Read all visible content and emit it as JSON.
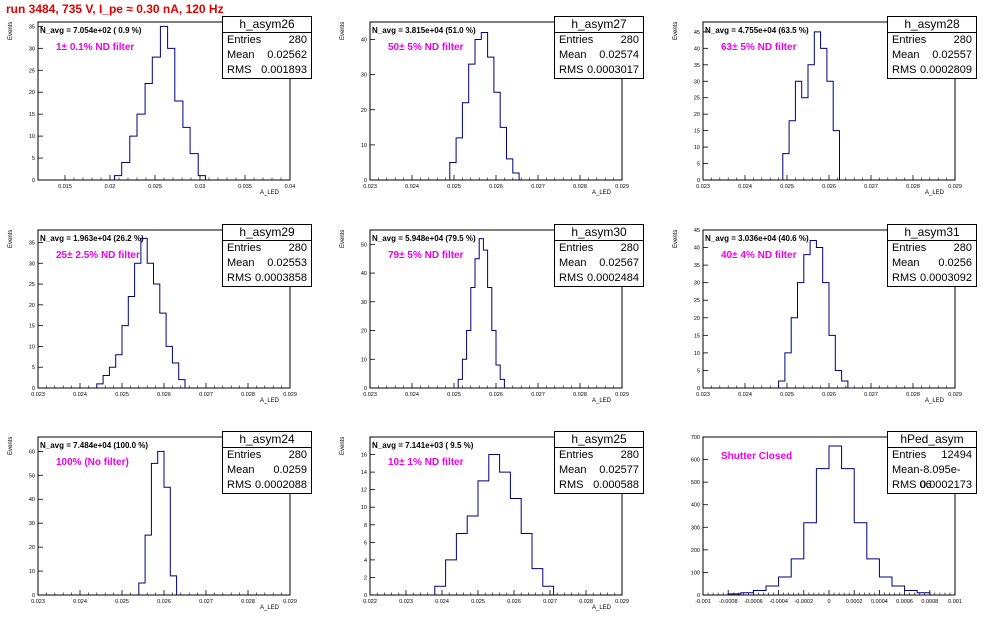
{
  "header": {
    "title": "run 3484,   735 V, I_pe ≈ 0.30 nA, 120 Hz"
  },
  "colors": {
    "title": "#e00000",
    "filter_label": "#ee00ee",
    "histogram": "#000080"
  },
  "chart_data": [
    {
      "type": "histogram",
      "name": "h_asym26",
      "stats": {
        "title": "h_asym26",
        "entries": "280",
        "mean": "0.02562",
        "rms": "0.001893"
      },
      "n_avg": "N_avg = 7.054e+02 ( 0.9 %)",
      "filter": "1± 0.1% ND filter",
      "xlabel": "A_LED",
      "ylabel": "Events",
      "xlim": [
        0.012,
        0.04
      ],
      "ylim": [
        0,
        36
      ],
      "xticks": [
        0.015,
        0.02,
        0.025,
        0.03,
        0.035,
        0.04
      ],
      "xtick_labels": [
        "0.015",
        "0.02",
        "0.025",
        "0.03",
        "0.035",
        "0.04"
      ],
      "yticks": [
        0,
        5,
        10,
        15,
        20,
        25,
        30,
        35
      ],
      "bin_edges": [
        0.0205,
        0.0213,
        0.0222,
        0.023,
        0.0239,
        0.0247,
        0.0256,
        0.0264,
        0.0272,
        0.0281,
        0.0289,
        0.0298,
        0.0306
      ],
      "counts": [
        1,
        4,
        10,
        15,
        22,
        28,
        35,
        30,
        18,
        12,
        6,
        1
      ]
    },
    {
      "type": "histogram",
      "name": "h_asym27",
      "stats": {
        "title": "h_asym27",
        "entries": "280",
        "mean": "0.02574",
        "rms": "0.0003017"
      },
      "n_avg": "N_avg = 3.815e+04 (51.0 %)",
      "filter": "50± 5% ND filter",
      "xlabel": "A_LED",
      "ylabel": "Events",
      "xlim": [
        0.023,
        0.029
      ],
      "ylim": [
        0,
        45
      ],
      "xticks": [
        0.023,
        0.024,
        0.025,
        0.026,
        0.027,
        0.028,
        0.029
      ],
      "xtick_labels": [
        "0.023",
        "0.024",
        "0.025",
        "0.026",
        "0.027",
        "0.028",
        "0.029"
      ],
      "yticks": [
        0,
        10,
        20,
        30,
        40
      ],
      "bin_edges": [
        0.0249,
        0.02505,
        0.0252,
        0.02535,
        0.0255,
        0.02565,
        0.0258,
        0.02595,
        0.0261,
        0.02625,
        0.0264,
        0.02655
      ],
      "counts": [
        5,
        12,
        22,
        33,
        40,
        42,
        35,
        25,
        15,
        6,
        2
      ]
    },
    {
      "type": "histogram",
      "name": "h_asym28",
      "stats": {
        "title": "h_asym28",
        "entries": "280",
        "mean": "0.02557",
        "rms": "0.0002809"
      },
      "n_avg": "N_avg = 4.755e+04 (63.5 %)",
      "filter": "63± 5% ND filter",
      "xlabel": "A_LED",
      "ylabel": "Events",
      "xlim": [
        0.023,
        0.029
      ],
      "ylim": [
        0,
        48
      ],
      "xticks": [
        0.023,
        0.024,
        0.025,
        0.026,
        0.027,
        0.028,
        0.029
      ],
      "xtick_labels": [
        "0.023",
        "0.024",
        "0.025",
        "0.026",
        "0.027",
        "0.028",
        "0.029"
      ],
      "yticks": [
        0,
        5,
        10,
        15,
        20,
        25,
        30,
        35,
        40,
        45
      ],
      "bin_edges": [
        0.0249,
        0.02505,
        0.0252,
        0.02535,
        0.0255,
        0.02565,
        0.0258,
        0.02595,
        0.0261,
        0.02625
      ],
      "counts": [
        8,
        18,
        30,
        25,
        35,
        45,
        40,
        30,
        15
      ]
    },
    {
      "type": "histogram",
      "name": "h_asym29",
      "stats": {
        "title": "h_asym29",
        "entries": "280",
        "mean": "0.02553",
        "rms": "0.0003858"
      },
      "n_avg": "N_avg = 1.963e+04 (26.2 %)",
      "filter": "25± 2.5% ND filter",
      "xlabel": "A_LED",
      "ylabel": "Events",
      "xlim": [
        0.023,
        0.029
      ],
      "ylim": [
        0,
        38
      ],
      "xticks": [
        0.023,
        0.024,
        0.025,
        0.026,
        0.027,
        0.028,
        0.029
      ],
      "xtick_labels": [
        "0.023",
        "0.024",
        "0.025",
        "0.026",
        "0.027",
        "0.028",
        "0.029"
      ],
      "yticks": [
        0,
        5,
        10,
        15,
        20,
        25,
        30,
        35
      ],
      "bin_edges": [
        0.0244,
        0.02455,
        0.0247,
        0.02485,
        0.025,
        0.02515,
        0.0253,
        0.02545,
        0.0256,
        0.02575,
        0.0259,
        0.02605,
        0.0262,
        0.02635,
        0.0265
      ],
      "counts": [
        1,
        3,
        5,
        8,
        15,
        22,
        30,
        36,
        30,
        25,
        18,
        10,
        6,
        2
      ]
    },
    {
      "type": "histogram",
      "name": "h_asym30",
      "stats": {
        "title": "h_asym30",
        "entries": "280",
        "mean": "0.02567",
        "rms": "0.0002484"
      },
      "n_avg": "N_avg = 5.948e+04 (79.5 %)",
      "filter": "79± 5% ND filter",
      "xlabel": "A_LED",
      "ylabel": "Events",
      "xlim": [
        0.023,
        0.029
      ],
      "ylim": [
        0,
        55
      ],
      "xticks": [
        0.023,
        0.024,
        0.025,
        0.026,
        0.027,
        0.028,
        0.029
      ],
      "xtick_labels": [
        "0.023",
        "0.024",
        "0.025",
        "0.026",
        "0.027",
        "0.028",
        "0.029"
      ],
      "yticks": [
        0,
        10,
        20,
        30,
        40,
        50
      ],
      "bin_edges": [
        0.0251,
        0.0252,
        0.0253,
        0.0254,
        0.0255,
        0.0256,
        0.0257,
        0.0258,
        0.0259,
        0.026,
        0.0261,
        0.0262
      ],
      "counts": [
        3,
        10,
        20,
        35,
        45,
        52,
        48,
        35,
        20,
        8,
        3
      ]
    },
    {
      "type": "histogram",
      "name": "h_asym31",
      "stats": {
        "title": "h_asym31",
        "entries": "280",
        "mean": "0.0256",
        "rms": "0.0003092"
      },
      "n_avg": "N_avg = 3.036e+04 (40.6 %)",
      "filter": "40± 4% ND filter",
      "xlabel": "A_LED",
      "ylabel": "Events",
      "xlim": [
        0.023,
        0.029
      ],
      "ylim": [
        0,
        45
      ],
      "xticks": [
        0.023,
        0.024,
        0.025,
        0.026,
        0.027,
        0.028,
        0.029
      ],
      "xtick_labels": [
        "0.023",
        "0.024",
        "0.025",
        "0.026",
        "0.027",
        "0.028",
        "0.029"
      ],
      "yticks": [
        0,
        5,
        10,
        15,
        20,
        25,
        30,
        35,
        40,
        45
      ],
      "bin_edges": [
        0.0248,
        0.02495,
        0.0251,
        0.02525,
        0.0254,
        0.02555,
        0.0257,
        0.02585,
        0.026,
        0.02615,
        0.0263,
        0.02645
      ],
      "counts": [
        2,
        10,
        20,
        30,
        38,
        42,
        40,
        30,
        15,
        5,
        2
      ]
    },
    {
      "type": "histogram",
      "name": "h_asym24",
      "stats": {
        "title": "h_asym24",
        "entries": "280",
        "mean": "0.0259",
        "rms": "0.0002088"
      },
      "n_avg": "N_avg = 7.484e+04 (100.0 %)",
      "filter": "100% (No filter)",
      "xlabel": "A_LED",
      "ylabel": "Events",
      "xlim": [
        0.023,
        0.029
      ],
      "ylim": [
        0,
        66
      ],
      "xticks": [
        0.023,
        0.024,
        0.025,
        0.026,
        0.027,
        0.028,
        0.029
      ],
      "xtick_labels": [
        "0.023",
        "0.024",
        "0.025",
        "0.026",
        "0.027",
        "0.028",
        "0.029"
      ],
      "yticks": [
        0,
        10,
        20,
        30,
        40,
        50,
        60
      ],
      "bin_edges": [
        0.0254,
        0.02555,
        0.0257,
        0.02585,
        0.026,
        0.02615,
        0.0263
      ],
      "counts": [
        5,
        25,
        55,
        60,
        45,
        8
      ]
    },
    {
      "type": "histogram",
      "name": "h_asym25",
      "stats": {
        "title": "h_asym25",
        "entries": "280",
        "mean": "0.02577",
        "rms": "0.000588"
      },
      "n_avg": "N_avg = 7.141e+03 ( 9.5 %)",
      "filter": "10± 1% ND filter",
      "xlabel": "A_LED",
      "ylabel": "Events",
      "xlim": [
        0.022,
        0.029
      ],
      "ylim": [
        0,
        18
      ],
      "xticks": [
        0.022,
        0.023,
        0.024,
        0.025,
        0.026,
        0.027,
        0.028,
        0.029
      ],
      "xtick_labels": [
        "0.022",
        "0.023",
        "0.024",
        "0.025",
        "0.026",
        "0.027",
        "0.028",
        "0.029"
      ],
      "yticks": [
        0,
        2,
        4,
        6,
        8,
        10,
        12,
        14,
        16
      ],
      "bin_edges": [
        0.0238,
        0.0241,
        0.0244,
        0.0247,
        0.025,
        0.0253,
        0.0256,
        0.0259,
        0.0262,
        0.0265,
        0.0268,
        0.0271
      ],
      "counts": [
        1,
        4,
        7,
        9,
        13,
        16,
        14,
        11,
        7,
        3,
        1
      ]
    },
    {
      "type": "histogram",
      "name": "hPed_asym",
      "stats": {
        "title": "hPed_asym",
        "entries": "12494",
        "mean": "-8.095e-06",
        "rms": "0.0002173"
      },
      "n_avg": "",
      "filter": "Shutter Closed",
      "xlabel": "",
      "ylabel": "",
      "xlim": [
        -0.001,
        0.001
      ],
      "ylim": [
        0,
        700
      ],
      "xticks": [
        -0.001,
        -0.0008,
        -0.0006,
        -0.0004,
        -0.0002,
        0,
        0.0002,
        0.0004,
        0.0006,
        0.0008,
        0.001
      ],
      "xtick_labels": [
        "-0.001",
        "-0.0008",
        "-0.0006",
        "-0.0004",
        "-0.0002",
        "0",
        "0.0002",
        "0.0004",
        "0.0006",
        "0.0008",
        "0.001"
      ],
      "yticks": [
        0,
        100,
        200,
        300,
        400,
        500,
        600,
        700
      ],
      "bin_edges": [
        -0.0008,
        -0.0007,
        -0.0006,
        -0.0005,
        -0.0004,
        -0.0003,
        -0.0002,
        -0.0001,
        0,
        0.0001,
        0.0002,
        0.0003,
        0.0004,
        0.0005,
        0.0006,
        0.0007,
        0.0008
      ],
      "counts": [
        5,
        10,
        20,
        40,
        80,
        160,
        320,
        560,
        660,
        560,
        320,
        160,
        80,
        40,
        20,
        10
      ]
    }
  ]
}
